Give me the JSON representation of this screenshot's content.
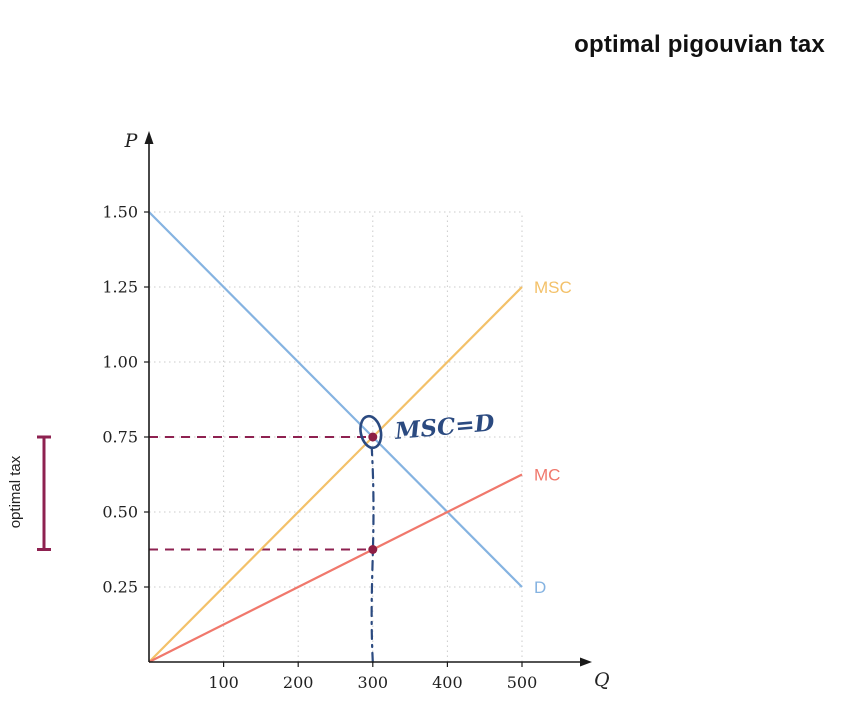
{
  "page": {
    "title": "optimal pigouvian tax"
  },
  "chart_data": {
    "type": "line",
    "title": "optimal pigouvian tax",
    "xlabel": "Q",
    "ylabel": "P",
    "xlim": [
      0,
      500
    ],
    "ylim": [
      0,
      1.5
    ],
    "grid": true,
    "x_ticks": {
      "values": [
        100,
        200,
        300,
        400,
        500
      ],
      "labels": [
        "100",
        "200",
        "300",
        "400",
        "500"
      ]
    },
    "y_ticks": {
      "values": [
        0.25,
        0.5,
        0.75,
        1.0,
        1.25,
        1.5
      ],
      "labels": [
        "0.25",
        "0.50",
        "0.75",
        "1.00",
        "1.25",
        "1.50"
      ]
    },
    "series": [
      {
        "name": "D",
        "color": "#85b3e1",
        "points": [
          [
            0,
            1.5
          ],
          [
            500,
            0.25
          ]
        ]
      },
      {
        "name": "MSC",
        "color": "#f3c169",
        "points": [
          [
            0,
            0
          ],
          [
            500,
            1.25
          ]
        ]
      },
      {
        "name": "MC",
        "color": "#f0786c",
        "points": [
          [
            0,
            0
          ],
          [
            500,
            0.625
          ]
        ]
      }
    ],
    "annotations": {
      "equilibrium": {
        "q": 300,
        "p": 0.75,
        "label": "MSC=D"
      },
      "mc_at_q": {
        "q": 300,
        "p": 0.375
      },
      "guide_lines": [
        {
          "type": "horizontal-dashed",
          "p": 0.75,
          "to_q": 300
        },
        {
          "type": "horizontal-dashed",
          "p": 0.375,
          "to_q": 300
        },
        {
          "type": "vertical-dashdot",
          "q": 300,
          "to_p": 0.71
        }
      ],
      "optimal_tax_bracket": {
        "label": "optimal tax",
        "p_from": 0.375,
        "p_to": 0.75
      }
    },
    "colors": {
      "guide": "#8e2150",
      "point": "#8e1f44",
      "handwriting": "#2b4a80",
      "grid": "#cbcbcb",
      "axis": "#1a1a1a",
      "tick_text": "#222222"
    }
  }
}
